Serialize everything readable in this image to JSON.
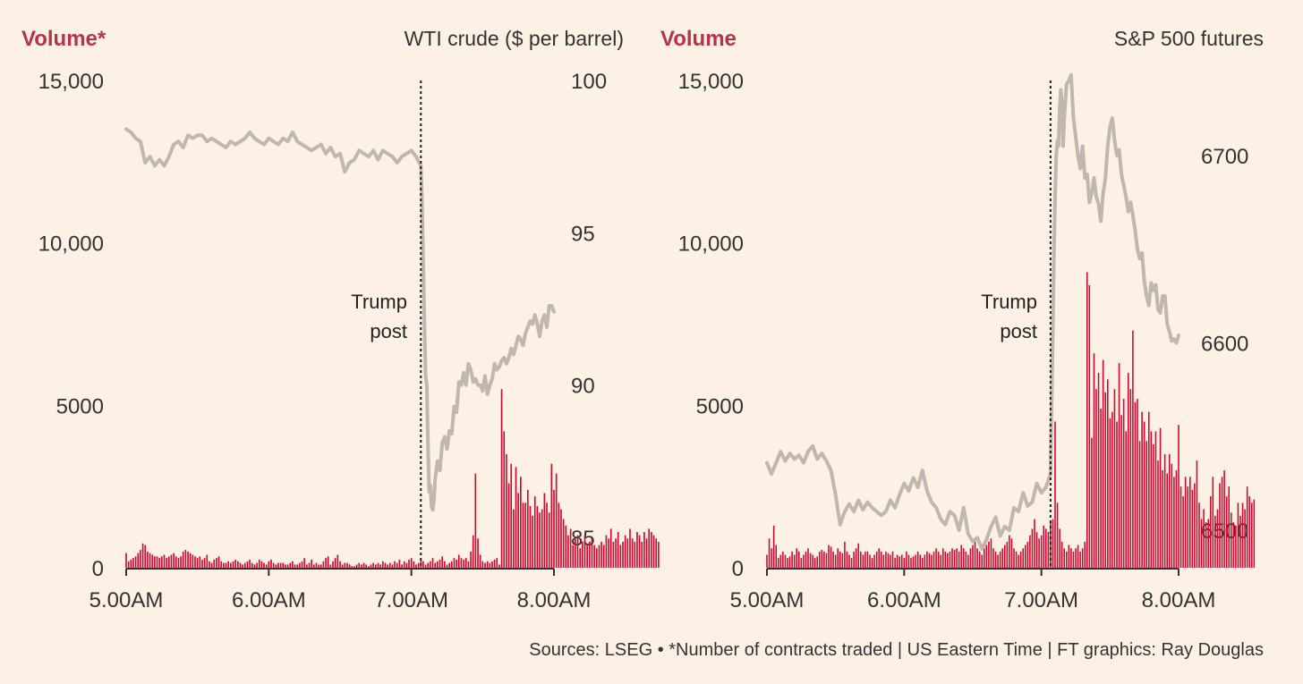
{
  "colors": {
    "background": "#fdf1e6",
    "volume": "#cc0a2f",
    "volume_label": "#b8324a",
    "price_line": "#bfb7b0",
    "text": "#333333"
  },
  "source_note": "Sources: LSEG • *Number of contracts traded | US Eastern Time | FT graphics: Ray Douglas",
  "chart_data": [
    {
      "type": "bar+line",
      "volume_label": "Volume*",
      "price_title": "WTI crude ($ per barrel)",
      "x_ticks": [
        "5.00AM",
        "6.00AM",
        "7.00AM",
        "8.00AM"
      ],
      "x_range_minutes": [
        300,
        480
      ],
      "volume_ticks": [
        "0",
        "5000",
        "10,000",
        "15,000"
      ],
      "volume_tick_values": [
        0,
        5000,
        10000,
        15000
      ],
      "volume_range": [
        0,
        15000
      ],
      "price_ticks": [
        "85",
        "90",
        "95",
        "100"
      ],
      "price_tick_values": [
        85,
        90,
        95,
        100
      ],
      "price_range": [
        84,
        100
      ],
      "event": {
        "label_lines": [
          "Trump",
          "post"
        ],
        "time_minutes": 424
      },
      "volume_series": {
        "time_start_minutes": 300,
        "interval_minutes": 1,
        "values": [
          450,
          200,
          250,
          300,
          350,
          450,
          550,
          750,
          700,
          500,
          450,
          400,
          350,
          350,
          300,
          350,
          400,
          300,
          350,
          400,
          450,
          350,
          300,
          350,
          500,
          550,
          500,
          450,
          400,
          350,
          300,
          350,
          250,
          300,
          400,
          200,
          150,
          250,
          300,
          350,
          200,
          150,
          150,
          200,
          150,
          200,
          250,
          200,
          150,
          100,
          150,
          200,
          250,
          150,
          100,
          150,
          250,
          200,
          150,
          100,
          200,
          250,
          150,
          100,
          150,
          150,
          150,
          100,
          100,
          150,
          200,
          100,
          100,
          150,
          200,
          300,
          100,
          150,
          250,
          100,
          150,
          100,
          100,
          200,
          300,
          350,
          100,
          200,
          300,
          400,
          200,
          100,
          150,
          150,
          100,
          50,
          50,
          100,
          150,
          100,
          150,
          100,
          50,
          100,
          150,
          100,
          150,
          100,
          200,
          150,
          100,
          150,
          100,
          200,
          150,
          250,
          100,
          200,
          150,
          250,
          300,
          200,
          100,
          150,
          250,
          200,
          100,
          150,
          200,
          300,
          150,
          200,
          250,
          350,
          200,
          100,
          150,
          200,
          300,
          250,
          400,
          300,
          250,
          300,
          200,
          500,
          1000,
          2900,
          900,
          400,
          200,
          150,
          200,
          150,
          200,
          250,
          300,
          100,
          5500,
          4200,
          3500,
          2600,
          3200,
          1800,
          3100,
          2300,
          2800,
          2000,
          2000,
          2400,
          1900,
          1600,
          2200,
          1900,
          1700,
          1800,
          2300,
          2000,
          1700,
          3200,
          2400,
          2900,
          2000,
          1800,
          1500,
          1300,
          1000,
          1200,
          700,
          900,
          1000,
          600,
          800,
          1000,
          700,
          800,
          900,
          700,
          600,
          700,
          800,
          700,
          1000,
          900,
          1200,
          800,
          900,
          1100,
          700,
          800,
          1000,
          900,
          1200,
          900,
          800,
          1100,
          1000,
          800,
          1100,
          900,
          1200,
          1100,
          1000,
          900,
          800
        ]
      },
      "price_series": {
        "time_minutes": [
          300,
          302,
          304,
          306,
          308,
          310,
          312,
          314,
          316,
          318,
          320,
          322,
          324,
          326,
          328,
          330,
          332,
          334,
          336,
          338,
          340,
          342,
          344,
          346,
          348,
          350,
          352,
          354,
          356,
          358,
          360,
          362,
          364,
          366,
          368,
          370,
          372,
          374,
          376,
          378,
          380,
          382,
          384,
          386,
          388,
          390,
          392,
          394,
          396,
          398,
          400,
          402,
          404,
          406,
          408,
          410,
          412,
          414,
          416,
          418,
          420,
          422,
          424,
          424.5,
          425,
          425.5,
          426,
          426.5,
          427,
          427.5,
          428,
          428.5,
          429,
          429.5,
          430,
          431,
          432,
          433,
          434,
          435,
          436,
          437,
          438,
          439,
          440,
          441,
          442,
          443,
          444,
          445,
          446,
          447,
          448,
          449,
          450,
          451,
          452,
          453,
          454,
          455,
          456,
          457,
          458,
          459,
          460,
          461,
          462,
          463,
          464,
          465,
          466,
          467,
          468,
          469,
          470,
          471,
          472,
          473,
          474,
          475,
          476,
          477,
          478,
          479,
          480
        ],
        "values": [
          98.4,
          98.3,
          98.1,
          98.0,
          97.3,
          97.5,
          97.2,
          97.4,
          97.2,
          97.5,
          97.9,
          98.0,
          97.8,
          98.2,
          98.1,
          98.2,
          98.2,
          98.0,
          98.1,
          98.0,
          97.9,
          97.8,
          98.0,
          97.9,
          98.0,
          98.1,
          98.3,
          98.1,
          98.0,
          97.9,
          98.1,
          98.0,
          97.9,
          98.1,
          98.0,
          98.3,
          98.0,
          97.9,
          97.8,
          97.7,
          97.8,
          97.9,
          97.6,
          97.8,
          97.5,
          97.6,
          97.0,
          97.3,
          97.4,
          97.7,
          97.6,
          97.5,
          97.7,
          97.4,
          97.7,
          97.6,
          97.5,
          97.3,
          97.5,
          97.6,
          97.7,
          97.5,
          97.2,
          96.0,
          94.0,
          92.0,
          90.3,
          90.0,
          88.0,
          86.5,
          86.7,
          86.0,
          85.9,
          86.2,
          86.9,
          87.5,
          87.2,
          88.1,
          88.3,
          87.9,
          88.5,
          88.4,
          89.3,
          89.1,
          90.1,
          90.0,
          90.4,
          90.0,
          90.7,
          90.5,
          90.1,
          90.2,
          90.0,
          90.0,
          89.8,
          90.3,
          89.7,
          90.0,
          90.2,
          90.7,
          90.5,
          90.6,
          90.8,
          90.9,
          90.7,
          90.9,
          91.2,
          91.0,
          91.3,
          91.6,
          91.5,
          91.3,
          91.7,
          91.9,
          92.1,
          92.0,
          92.3,
          92.0,
          91.6,
          92.1,
          92.3,
          91.9,
          92.6,
          92.6,
          92.4,
          92.7,
          92.4,
          92.9
        ]
      }
    },
    {
      "type": "bar+line",
      "volume_label": "Volume",
      "price_title": "S&P 500 futures",
      "x_ticks": [
        "5.00AM",
        "6.00AM",
        "7.00AM",
        "8.00AM"
      ],
      "x_range_minutes": [
        300,
        480
      ],
      "volume_ticks": [
        "0",
        "5000",
        "10,000",
        "15,000"
      ],
      "volume_tick_values": [
        0,
        5000,
        10000,
        15000
      ],
      "volume_range": [
        0,
        15000
      ],
      "price_ticks": [
        "6500",
        "6600",
        "6700"
      ],
      "price_tick_values": [
        6500,
        6600,
        6700
      ],
      "price_range": [
        6480,
        6740
      ],
      "event": {
        "label_lines": [
          "Trump",
          "post"
        ],
        "time_minutes": 424
      },
      "volume_series": {
        "time_start_minutes": 300,
        "interval_minutes": 1,
        "values": [
          400,
          900,
          600,
          1300,
          700,
          300,
          400,
          500,
          400,
          300,
          350,
          500,
          400,
          600,
          500,
          300,
          400,
          500,
          600,
          450,
          400,
          300,
          350,
          500,
          550,
          500,
          450,
          700,
          650,
          500,
          400,
          600,
          500,
          450,
          800,
          500,
          400,
          300,
          500,
          600,
          750,
          500,
          400,
          500,
          500,
          400,
          300,
          400,
          500,
          600,
          500,
          400,
          500,
          450,
          400,
          500,
          300,
          400,
          350,
          400,
          300,
          500,
          400,
          300,
          350,
          400,
          500,
          400,
          300,
          400,
          500,
          450,
          400,
          500,
          600,
          500,
          400,
          600,
          500,
          450,
          500,
          600,
          550,
          600,
          500,
          700,
          600,
          500,
          400,
          600,
          700,
          800,
          600,
          500,
          400,
          600,
          700,
          800,
          900,
          600,
          500,
          400,
          500,
          600,
          700,
          800,
          1000,
          900,
          600,
          500,
          400,
          500,
          600,
          700,
          800,
          1000,
          1200,
          1500,
          1100,
          900,
          1000,
          1300,
          1200,
          1100,
          1400,
          1500,
          4500,
          2000,
          1200,
          800,
          600,
          500,
          700,
          600,
          500,
          600,
          700,
          500,
          600,
          800,
          9100,
          8700,
          4000,
          6600,
          5500,
          6000,
          4900,
          6400,
          5400,
          5800,
          4600,
          4800,
          5500,
          4500,
          6300,
          4700,
          5200,
          4200,
          6000,
          5500,
          7300,
          5100,
          5200,
          3900,
          4800,
          4500,
          3900,
          4800,
          4200,
          3800,
          4200,
          3300,
          4300,
          3000,
          3500,
          2900,
          3500,
          3200,
          2800,
          3000,
          4400,
          2500,
          2200,
          2800,
          2500,
          2800,
          2400,
          2600,
          3300,
          2000,
          1500,
          1800,
          1400,
          1500,
          2200,
          2800,
          1600,
          1800,
          2600,
          2800,
          3000,
          2200,
          2500,
          1700,
          1400,
          1300,
          2000,
          1600,
          2000,
          1800,
          2500,
          2200,
          2000,
          2100
        ]
      },
      "price_series": {
        "time_minutes": [
          300,
          302,
          304,
          306,
          308,
          310,
          312,
          314,
          316,
          318,
          320,
          322,
          324,
          326,
          328,
          330,
          332,
          334,
          336,
          338,
          340,
          342,
          344,
          346,
          348,
          350,
          352,
          354,
          356,
          358,
          360,
          362,
          364,
          366,
          368,
          370,
          372,
          374,
          376,
          378,
          380,
          382,
          384,
          386,
          388,
          390,
          392,
          394,
          396,
          398,
          400,
          402,
          404,
          406,
          408,
          410,
          412,
          414,
          416,
          418,
          420,
          422,
          424,
          424.5,
          425,
          425.5,
          426,
          426.5,
          427,
          427.5,
          428,
          428.5,
          429,
          429.5,
          430,
          431,
          432,
          433,
          434,
          435,
          436,
          437,
          438,
          439,
          440,
          441,
          442,
          443,
          444,
          445,
          446,
          447,
          448,
          449,
          450,
          451,
          452,
          453,
          454,
          455,
          456,
          457,
          458,
          459,
          460,
          461,
          462,
          463,
          464,
          465,
          466,
          467,
          468,
          469,
          470,
          471,
          472,
          473,
          474,
          475,
          476,
          477,
          478,
          479,
          480
        ],
        "values": [
          6536,
          6530,
          6536,
          6542,
          6537,
          6541,
          6538,
          6540,
          6536,
          6542,
          6545,
          6538,
          6541,
          6537,
          6532,
          6519,
          6503,
          6510,
          6514,
          6510,
          6516,
          6511,
          6515,
          6512,
          6510,
          6508,
          6510,
          6516,
          6512,
          6519,
          6525,
          6521,
          6528,
          6523,
          6532,
          6521,
          6515,
          6512,
          6506,
          6503,
          6510,
          6508,
          6500,
          6512,
          6498,
          6494,
          6496,
          6490,
          6495,
          6502,
          6507,
          6497,
          6502,
          6500,
          6512,
          6510,
          6520,
          6513,
          6515,
          6525,
          6520,
          6523,
          6530,
          6570,
          6605,
          6648,
          6678,
          6700,
          6708,
          6705,
          6725,
          6735,
          6728,
          6705,
          6720,
          6738,
          6740,
          6743,
          6720,
          6710,
          6700,
          6693,
          6705,
          6688,
          6690,
          6675,
          6680,
          6688,
          6678,
          6674,
          6665,
          6680,
          6688,
          6705,
          6715,
          6720,
          6708,
          6700,
          6703,
          6690,
          6684,
          6678,
          6670,
          6675,
          6668,
          6660,
          6650,
          6645,
          6648,
          6633,
          6625,
          6620,
          6632,
          6628,
          6631,
          6618,
          6616,
          6625,
          6625,
          6610,
          6606,
          6601,
          6602,
          6600,
          6604,
          6597
        ]
      }
    }
  ]
}
